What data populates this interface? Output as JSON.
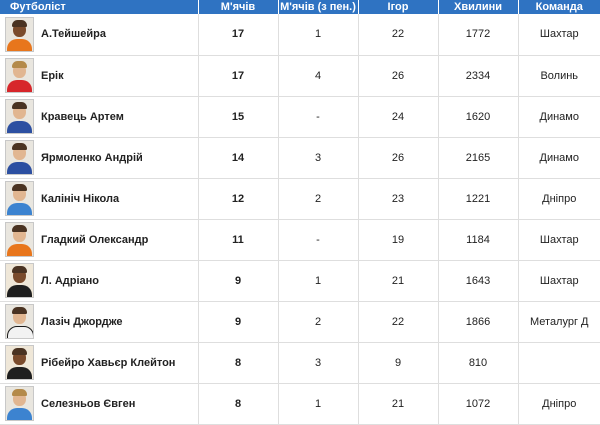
{
  "headers": {
    "player": "Футболіст",
    "goals": "М'ячів",
    "goals_pen": "М'ячів (з пен.)",
    "games": "Ігор",
    "minutes": "Хвилини",
    "team": "Команда"
  },
  "colors": {
    "header_bg": "#2f73c2",
    "header_text": "#ffffff",
    "row_border": "#dedede"
  },
  "rows": [
    {
      "name": "А.Тейшейра",
      "goals": "17",
      "pen": "1",
      "games": "22",
      "minutes": "1772",
      "team": "Шахтар"
    },
    {
      "name": "Ерік",
      "goals": "17",
      "pen": "4",
      "games": "26",
      "minutes": "2334",
      "team": "Волинь"
    },
    {
      "name": "Кравець Артем",
      "goals": "15",
      "pen": "-",
      "games": "24",
      "minutes": "1620",
      "team": "Динамо"
    },
    {
      "name": "Ярмоленко Андрій",
      "goals": "14",
      "pen": "3",
      "games": "26",
      "minutes": "2165",
      "team": "Динамо"
    },
    {
      "name": "Калініч Нікола",
      "goals": "12",
      "pen": "2",
      "games": "23",
      "minutes": "1221",
      "team": "Дніпро"
    },
    {
      "name": "Гладкий Олександр",
      "goals": "11",
      "pen": "-",
      "games": "19",
      "minutes": "1184",
      "team": "Шахтар"
    },
    {
      "name": "Л. Адріано",
      "goals": "9",
      "pen": "1",
      "games": "21",
      "minutes": "1643",
      "team": "Шахтар"
    },
    {
      "name": "Лазіч Джордже",
      "goals": "9",
      "pen": "2",
      "games": "22",
      "minutes": "1866",
      "team": "Металург Д"
    },
    {
      "name": "Рібейро Хавьєр Клейтон",
      "goals": "8",
      "pen": "3",
      "games": "9",
      "minutes": "810",
      "team": ""
    },
    {
      "name": "Селезньов Євген",
      "goals": "8",
      "pen": "1",
      "games": "21",
      "minutes": "1072",
      "team": "Дніпро"
    }
  ]
}
